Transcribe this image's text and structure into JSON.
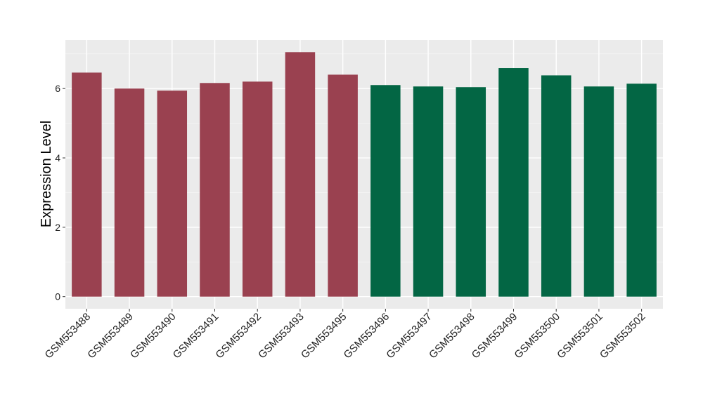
{
  "chart_data": {
    "type": "bar",
    "title": "",
    "xlabel": "",
    "ylabel": "Expression Level",
    "ylim": [
      -0.35,
      7.4
    ],
    "yticks": [
      0,
      2,
      4,
      6
    ],
    "grid": true,
    "categories": [
      "GSM553488",
      "GSM553489",
      "GSM553490",
      "GSM553491",
      "GSM553492",
      "GSM553493",
      "GSM553495",
      "GSM553496",
      "GSM553497",
      "GSM553498",
      "GSM553499",
      "GSM553500",
      "GSM553501",
      "GSM553502"
    ],
    "values": [
      6.46,
      6.0,
      5.94,
      6.16,
      6.2,
      7.05,
      6.4,
      6.1,
      6.06,
      6.04,
      6.59,
      6.38,
      6.06,
      6.14
    ],
    "groups": [
      0,
      0,
      0,
      0,
      0,
      0,
      0,
      1,
      1,
      1,
      1,
      1,
      1,
      1
    ],
    "group_colors": [
      "#9a4150",
      "#036644"
    ]
  }
}
